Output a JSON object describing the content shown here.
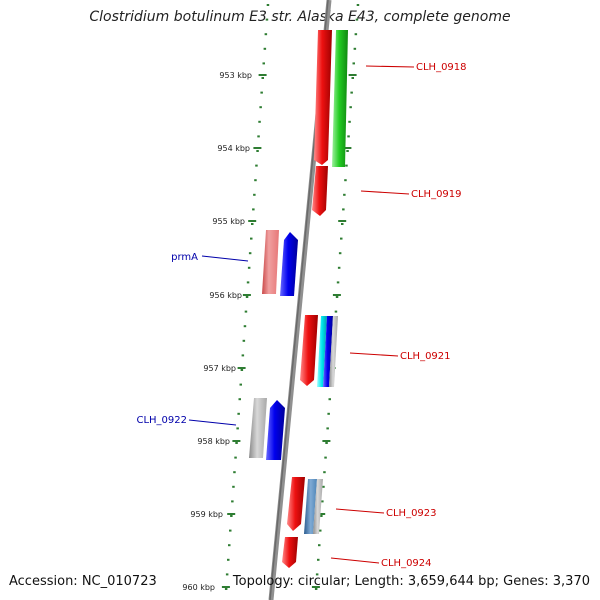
{
  "title": "Clostridium botulinum E3 str. Alaska E43, complete genome",
  "accession": "Accession: NC_010723",
  "summary": "Topology: circular; Length: 3,659,644 bp; Genes: 3,370",
  "colors": {
    "backbone": "#808080",
    "tick": "#2e7d32",
    "label_forward": "#0000aa",
    "label_reverse": "#cc0000",
    "cds": "#ee1111",
    "cds_forward": "#0000ee",
    "rna": "#22cc22",
    "pseudo": "#ee7777",
    "hypothetical": "#b0b0b0",
    "cyan": "#00e5ee",
    "steelblue": "#4f86b8"
  },
  "scale": {
    "kbp": [
      "953 kbp",
      "954 kbp",
      "955 kbp",
      "956 kbp",
      "957 kbp",
      "958 kbp",
      "959 kbp",
      "960 kbp"
    ]
  },
  "genes": [
    {
      "label": "CLH_0918",
      "strand": "reverse"
    },
    {
      "label": "CLH_0919",
      "strand": "reverse"
    },
    {
      "label": "prmA",
      "strand": "forward"
    },
    {
      "label": "CLH_0921",
      "strand": "reverse"
    },
    {
      "label": "CLH_0922",
      "strand": "forward"
    },
    {
      "label": "CLH_0923",
      "strand": "reverse"
    },
    {
      "label": "CLH_0924",
      "strand": "reverse"
    }
  ]
}
